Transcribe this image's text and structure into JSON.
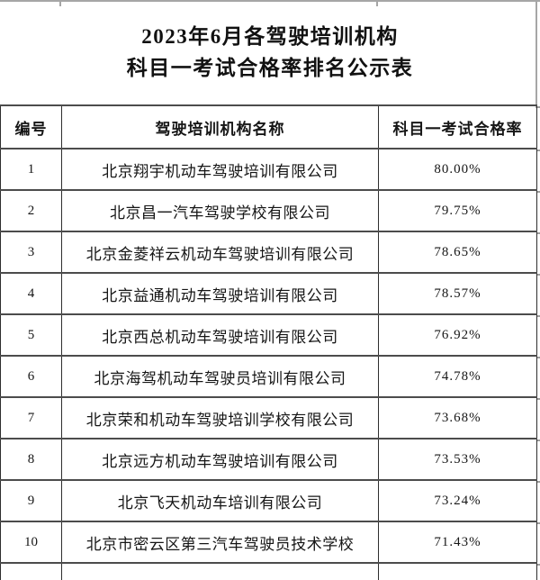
{
  "title": {
    "line1": "2023年6月各驾驶培训机构",
    "line2": "科目一考试合格率排名公示表"
  },
  "table": {
    "headers": [
      "编号",
      "驾驶培训机构名称",
      "科目一考试合格率"
    ],
    "rows": [
      {
        "no": "1",
        "name": "北京翔宇机动车驾驶培训有限公司",
        "rate": "80.00%"
      },
      {
        "no": "2",
        "name": "北京昌一汽车驾驶学校有限公司",
        "rate": "79.75%"
      },
      {
        "no": "3",
        "name": "北京金菱祥云机动车驾驶培训有限公司",
        "rate": "78.65%"
      },
      {
        "no": "4",
        "name": "北京益通机动车驾驶培训有限公司",
        "rate": "78.57%"
      },
      {
        "no": "5",
        "name": "北京西总机动车驾驶培训有限公司",
        "rate": "76.92%"
      },
      {
        "no": "6",
        "name": "北京海驾机动车驾驶员培训有限公司",
        "rate": "74.78%"
      },
      {
        "no": "7",
        "name": "北京荣和机动车驾驶培训学校有限公司",
        "rate": "73.68%"
      },
      {
        "no": "8",
        "name": "北京远方机动车驾驶培训有限公司",
        "rate": "73.53%"
      },
      {
        "no": "9",
        "name": "北京飞天机动车培训有限公司",
        "rate": "73.24%"
      },
      {
        "no": "10",
        "name": "北京市密云区第三汽车驾驶员技术学校",
        "rate": "71.43%"
      }
    ]
  },
  "colors": {
    "background": "#ffffff",
    "text": "#161616",
    "border_horizontal": "#4c4c4c",
    "border_vertical": "#2e2e2e",
    "cropped_gridline": "#a6a6a6"
  }
}
